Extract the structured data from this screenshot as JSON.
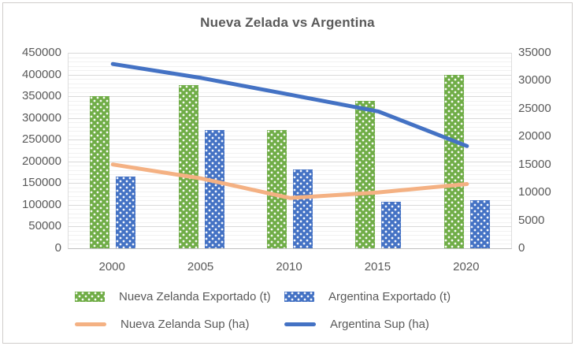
{
  "chart_data": {
    "type": "combo-bar-line",
    "title": "Nueva Zelada vs Argentina",
    "categories": [
      "2000",
      "2005",
      "2010",
      "2015",
      "2020"
    ],
    "left_axis": {
      "min": 0,
      "max": 450000,
      "major_step": 50000,
      "minor_step": 10000,
      "ticks": [
        "450000",
        "400000",
        "350000",
        "300000",
        "250000",
        "200000",
        "150000",
        "100000",
        "50000",
        "0"
      ]
    },
    "right_axis": {
      "min": 0,
      "max": 35000,
      "major_step": 5000,
      "ticks": [
        "35000",
        "30000",
        "25000",
        "20000",
        "15000",
        "10000",
        "5000",
        "0"
      ]
    },
    "series": [
      {
        "name": "Nueva Zelanda Exportado (t)",
        "type": "bar",
        "axis": "left",
        "color": "#70AD47",
        "fill_pattern": "white-dots",
        "values": [
          350000,
          375000,
          272000,
          340000,
          400000
        ]
      },
      {
        "name": "Argentina Exportado (t)",
        "type": "bar",
        "axis": "left",
        "color": "#4472C4",
        "fill_pattern": "white-dots",
        "values": [
          166000,
          272000,
          182000,
          107000,
          110000
        ]
      },
      {
        "name": "Nueva Zelanda Sup (ha)",
        "type": "line",
        "axis": "right",
        "color": "#F4B183",
        "values": [
          15000,
          12500,
          9000,
          10000,
          11500
        ]
      },
      {
        "name": "Argentina Sup (ha)",
        "type": "line",
        "axis": "right",
        "color": "#4472C4",
        "values": [
          33000,
          30500,
          27500,
          24500,
          18300
        ]
      }
    ],
    "legend_position": "bottom",
    "grid": true,
    "styles": {
      "text_color": "#595959",
      "major_gridline_color": "#D9D9D9",
      "minor_gridline_color": "#F1F1F1",
      "axis_line_color": "#BFBFBF"
    }
  }
}
